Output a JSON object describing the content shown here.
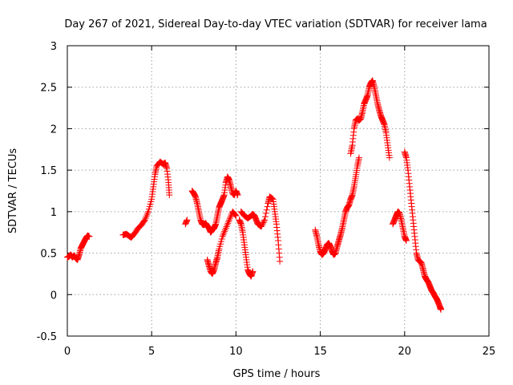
{
  "chart_data": {
    "type": "scatter",
    "title": "Day 267 of 2021, Sidereal Day-to-day VTEC variation (SDTVAR) for receiver lama",
    "xlabel": "GPS time / hours",
    "ylabel": "SDTVAR / TECUs",
    "xlim": [
      0,
      25
    ],
    "ylim": [
      -0.5,
      3
    ],
    "xticks": [
      0,
      5,
      10,
      15,
      20,
      25
    ],
    "xtick_labels": [
      "0",
      "5",
      "10",
      "15",
      "20",
      "25"
    ],
    "yticks": [
      -0.5,
      0,
      0.5,
      1,
      1.5,
      2,
      2.5,
      3
    ],
    "ytick_labels": [
      "-0.5",
      "0",
      "0.5",
      "1",
      "1.5",
      "2",
      "2.5",
      "3"
    ],
    "grid": true,
    "marker": "+",
    "series": [
      {
        "name": "SDTVAR",
        "color": "#ff0000",
        "segments": [
          [
            [
              0.0,
              0.45
            ],
            [
              0.1,
              0.46
            ],
            [
              0.2,
              0.48
            ],
            [
              0.3,
              0.45
            ],
            [
              0.4,
              0.47
            ],
            [
              0.5,
              0.44
            ],
            [
              0.6,
              0.42
            ],
            [
              0.7,
              0.48
            ],
            [
              0.8,
              0.56
            ],
            [
              0.9,
              0.6
            ],
            [
              1.0,
              0.64
            ],
            [
              1.1,
              0.68
            ],
            [
              1.2,
              0.71
            ],
            [
              1.3,
              0.7
            ]
          ],
          [
            [
              3.3,
              0.72
            ],
            [
              3.5,
              0.73
            ],
            [
              3.7,
              0.7
            ],
            [
              3.8,
              0.69
            ],
            [
              4.0,
              0.74
            ],
            [
              4.2,
              0.8
            ],
            [
              4.4,
              0.84
            ],
            [
              4.6,
              0.9
            ],
            [
              4.8,
              1.0
            ],
            [
              5.0,
              1.15
            ],
            [
              5.1,
              1.3
            ],
            [
              5.2,
              1.45
            ],
            [
              5.3,
              1.55
            ],
            [
              5.5,
              1.6
            ],
            [
              5.7,
              1.57
            ],
            [
              5.8,
              1.59
            ],
            [
              5.9,
              1.52
            ],
            [
              6.0,
              1.35
            ],
            [
              6.05,
              1.2
            ]
          ],
          [
            [
              7.0,
              0.85
            ],
            [
              7.1,
              0.9
            ]
          ],
          [
            [
              7.4,
              1.25
            ],
            [
              7.5,
              1.22
            ],
            [
              7.6,
              1.18
            ],
            [
              7.7,
              1.1
            ],
            [
              7.8,
              1.0
            ],
            [
              7.9,
              0.9
            ],
            [
              8.0,
              0.85
            ],
            [
              8.1,
              0.84
            ],
            [
              8.2,
              0.86
            ],
            [
              8.3,
              0.83
            ],
            [
              8.4,
              0.8
            ],
            [
              8.5,
              0.75
            ],
            [
              8.6,
              0.78
            ],
            [
              8.7,
              0.8
            ],
            [
              8.8,
              0.85
            ],
            [
              8.9,
              0.95
            ],
            [
              9.0,
              1.05
            ],
            [
              9.1,
              1.1
            ],
            [
              9.2,
              1.15
            ],
            [
              9.3,
              1.2
            ],
            [
              9.4,
              1.35
            ],
            [
              9.5,
              1.42
            ],
            [
              9.6,
              1.38
            ],
            [
              9.7,
              1.3
            ],
            [
              9.8,
              1.22
            ],
            [
              9.9,
              1.2
            ],
            [
              10.0,
              1.25
            ],
            [
              10.1,
              1.2
            ]
          ],
          [
            [
              8.3,
              0.42
            ],
            [
              8.4,
              0.35
            ],
            [
              8.5,
              0.28
            ],
            [
              8.6,
              0.25
            ],
            [
              8.7,
              0.3
            ],
            [
              8.8,
              0.38
            ],
            [
              8.9,
              0.45
            ],
            [
              9.0,
              0.55
            ],
            [
              9.2,
              0.7
            ],
            [
              9.4,
              0.8
            ],
            [
              9.6,
              0.9
            ],
            [
              9.8,
              1.0
            ],
            [
              10.0,
              0.95
            ]
          ],
          [
            [
              10.2,
              0.9
            ],
            [
              10.3,
              0.85
            ],
            [
              10.4,
              0.75
            ],
            [
              10.5,
              0.6
            ],
            [
              10.6,
              0.45
            ],
            [
              10.7,
              0.3
            ],
            [
              10.8,
              0.25
            ],
            [
              10.9,
              0.22
            ],
            [
              11.0,
              0.28
            ]
          ],
          [
            [
              10.3,
              1.0
            ],
            [
              10.5,
              0.95
            ],
            [
              10.7,
              0.92
            ],
            [
              10.9,
              0.95
            ],
            [
              11.0,
              0.97
            ],
            [
              11.1,
              0.95
            ],
            [
              11.2,
              0.9
            ],
            [
              11.3,
              0.85
            ],
            [
              11.5,
              0.82
            ],
            [
              11.7,
              0.9
            ],
            [
              11.9,
              1.1
            ],
            [
              12.0,
              1.18
            ],
            [
              12.2,
              1.15
            ],
            [
              12.3,
              1.0
            ],
            [
              12.4,
              0.85
            ],
            [
              12.5,
              0.65
            ],
            [
              12.6,
              0.4
            ]
          ],
          [
            [
              14.7,
              0.78
            ],
            [
              14.8,
              0.7
            ],
            [
              14.9,
              0.6
            ],
            [
              15.0,
              0.52
            ],
            [
              15.1,
              0.48
            ],
            [
              15.2,
              0.5
            ],
            [
              15.3,
              0.55
            ],
            [
              15.4,
              0.6
            ],
            [
              15.5,
              0.62
            ],
            [
              15.6,
              0.58
            ],
            [
              15.7,
              0.52
            ],
            [
              15.8,
              0.48
            ],
            [
              15.9,
              0.5
            ],
            [
              16.0,
              0.58
            ],
            [
              16.1,
              0.65
            ],
            [
              16.2,
              0.72
            ],
            [
              16.3,
              0.8
            ],
            [
              16.4,
              0.9
            ],
            [
              16.5,
              1.0
            ],
            [
              16.6,
              1.05
            ],
            [
              16.7,
              1.08
            ],
            [
              16.8,
              1.15
            ],
            [
              16.9,
              1.2
            ],
            [
              17.0,
              1.3
            ],
            [
              17.1,
              1.42
            ],
            [
              17.2,
              1.55
            ],
            [
              17.3,
              1.65
            ]
          ],
          [
            [
              16.8,
              1.7
            ],
            [
              16.9,
              1.8
            ],
            [
              17.0,
              2.0
            ],
            [
              17.1,
              2.1
            ],
            [
              17.2,
              2.12
            ],
            [
              17.3,
              2.1
            ],
            [
              17.4,
              2.12
            ],
            [
              17.5,
              2.2
            ],
            [
              17.6,
              2.3
            ],
            [
              17.7,
              2.35
            ],
            [
              17.8,
              2.4
            ],
            [
              17.9,
              2.5
            ],
            [
              18.0,
              2.55
            ],
            [
              18.1,
              2.58
            ],
            [
              18.2,
              2.5
            ],
            [
              18.3,
              2.4
            ],
            [
              18.4,
              2.3
            ],
            [
              18.5,
              2.22
            ],
            [
              18.6,
              2.15
            ],
            [
              18.7,
              2.1
            ],
            [
              18.8,
              2.05
            ],
            [
              18.9,
              1.95
            ],
            [
              19.0,
              1.8
            ],
            [
              19.1,
              1.65
            ]
          ],
          [
            [
              19.3,
              0.85
            ],
            [
              19.4,
              0.9
            ],
            [
              19.5,
              0.95
            ],
            [
              19.6,
              1.0
            ],
            [
              19.7,
              0.98
            ],
            [
              19.8,
              0.9
            ],
            [
              19.9,
              0.8
            ],
            [
              20.0,
              0.7
            ],
            [
              20.1,
              0.65
            ]
          ],
          [
            [
              20.0,
              1.72
            ],
            [
              20.1,
              1.65
            ],
            [
              20.2,
              1.5
            ],
            [
              20.3,
              1.3
            ],
            [
              20.4,
              1.1
            ],
            [
              20.5,
              0.9
            ],
            [
              20.6,
              0.7
            ],
            [
              20.7,
              0.5
            ],
            [
              20.8,
              0.42
            ],
            [
              20.9,
              0.4
            ],
            [
              21.0,
              0.38
            ],
            [
              21.1,
              0.3
            ],
            [
              21.2,
              0.22
            ],
            [
              21.3,
              0.18
            ],
            [
              21.4,
              0.15
            ],
            [
              21.5,
              0.1
            ],
            [
              21.6,
              0.05
            ],
            [
              21.7,
              0.02
            ],
            [
              21.8,
              -0.02
            ],
            [
              21.9,
              -0.05
            ],
            [
              22.0,
              -0.1
            ],
            [
              22.1,
              -0.15
            ],
            [
              22.15,
              -0.18
            ]
          ]
        ]
      }
    ]
  }
}
